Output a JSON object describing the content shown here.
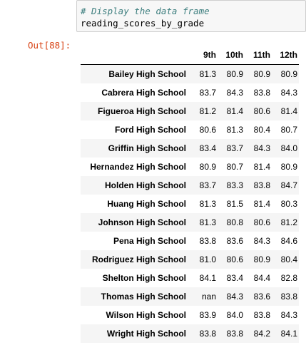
{
  "input": {
    "comment": "# Display the data frame",
    "code": "reading_scores_by_grade"
  },
  "output": {
    "prompt": "Out[88]:"
  },
  "table": {
    "columns": [
      "9th",
      "10th",
      "11th",
      "12th"
    ],
    "rows": [
      {
        "school": "Bailey High School",
        "values": [
          "81.3",
          "80.9",
          "80.9",
          "80.9"
        ]
      },
      {
        "school": "Cabrera High School",
        "values": [
          "83.7",
          "84.3",
          "83.8",
          "84.3"
        ]
      },
      {
        "school": "Figueroa High School",
        "values": [
          "81.2",
          "81.4",
          "80.6",
          "81.4"
        ]
      },
      {
        "school": "Ford High School",
        "values": [
          "80.6",
          "81.3",
          "80.4",
          "80.7"
        ]
      },
      {
        "school": "Griffin High School",
        "values": [
          "83.4",
          "83.7",
          "84.3",
          "84.0"
        ]
      },
      {
        "school": "Hernandez High School",
        "values": [
          "80.9",
          "80.7",
          "81.4",
          "80.9"
        ]
      },
      {
        "school": "Holden High School",
        "values": [
          "83.7",
          "83.3",
          "83.8",
          "84.7"
        ]
      },
      {
        "school": "Huang High School",
        "values": [
          "81.3",
          "81.5",
          "81.4",
          "80.3"
        ]
      },
      {
        "school": "Johnson High School",
        "values": [
          "81.3",
          "80.8",
          "80.6",
          "81.2"
        ]
      },
      {
        "school": "Pena High School",
        "values": [
          "83.8",
          "83.6",
          "84.3",
          "84.6"
        ]
      },
      {
        "school": "Rodriguez High School",
        "values": [
          "81.0",
          "80.6",
          "80.9",
          "80.4"
        ]
      },
      {
        "school": "Shelton High School",
        "values": [
          "84.1",
          "83.4",
          "84.4",
          "82.8"
        ]
      },
      {
        "school": "Thomas High School",
        "values": [
          "nan",
          "84.3",
          "83.6",
          "83.8"
        ]
      },
      {
        "school": "Wilson High School",
        "values": [
          "83.9",
          "84.0",
          "83.8",
          "84.3"
        ]
      },
      {
        "school": "Wright High School",
        "values": [
          "83.8",
          "83.8",
          "84.2",
          "84.1"
        ]
      }
    ]
  }
}
